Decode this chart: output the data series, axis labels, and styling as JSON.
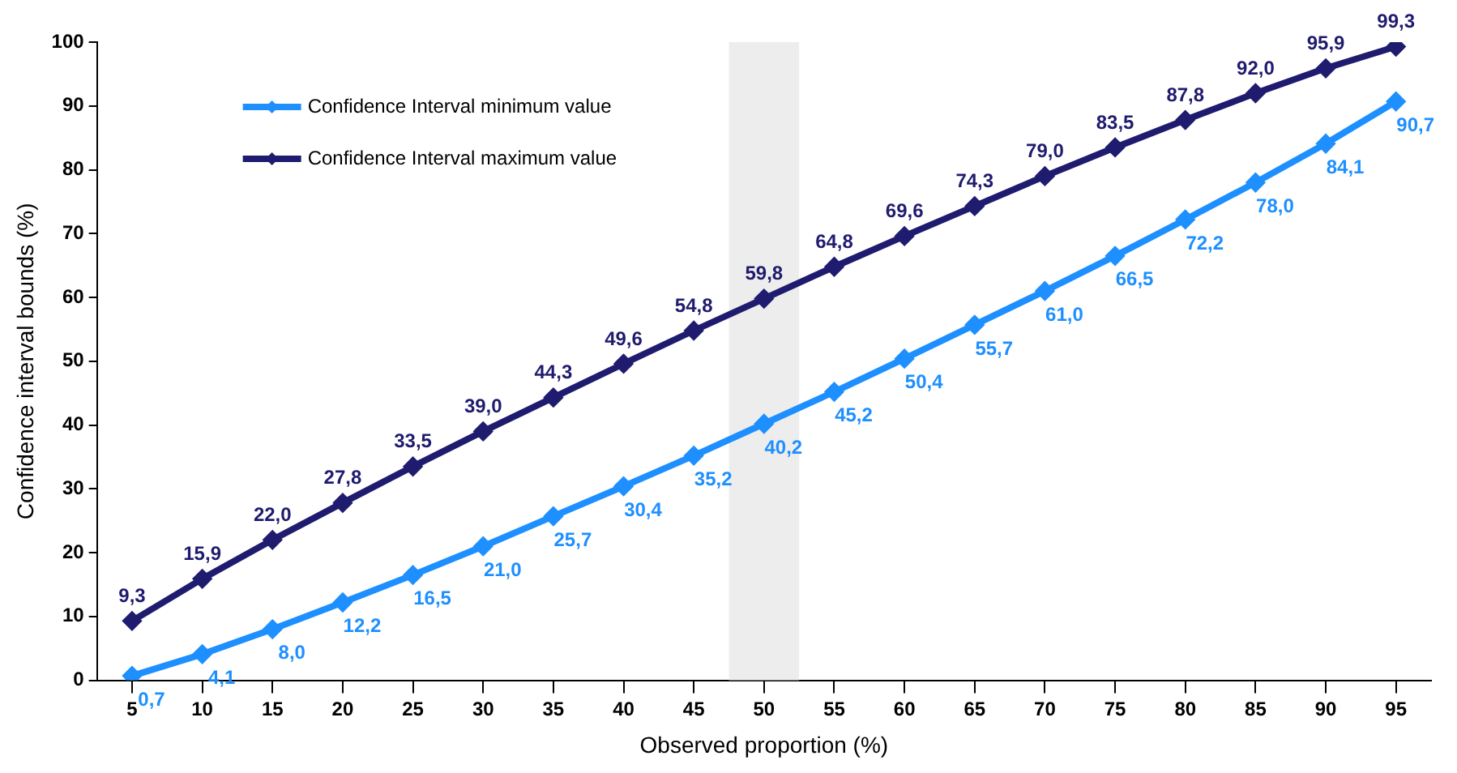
{
  "chart_data": {
    "type": "line",
    "xlabel": "Observed proportion (%)",
    "ylabel": "Confidence interval bounds (%)",
    "x": [
      5,
      10,
      15,
      20,
      25,
      30,
      35,
      40,
      45,
      50,
      55,
      60,
      65,
      70,
      75,
      80,
      85,
      90,
      95
    ],
    "xlim": [
      2.5,
      97.5
    ],
    "xticks": [
      5,
      10,
      15,
      20,
      25,
      30,
      35,
      40,
      45,
      50,
      55,
      60,
      65,
      70,
      75,
      80,
      85,
      90,
      95
    ],
    "ylim": [
      0,
      100
    ],
    "yticks": [
      0,
      10,
      20,
      30,
      40,
      50,
      60,
      70,
      80,
      90,
      100
    ],
    "series": [
      {
        "name": "Confidence Interval minimum value",
        "color": "#1e8fff",
        "values": [
          0.7,
          4.1,
          8.0,
          12.2,
          16.5,
          21.0,
          25.7,
          30.4,
          35.2,
          40.2,
          45.2,
          50.4,
          55.7,
          61.0,
          66.5,
          72.2,
          78.0,
          84.1,
          90.7
        ],
        "value_labels": [
          "0,7",
          "4,1",
          "8,0",
          "12,2",
          "16,5",
          "21,0",
          "25,7",
          "30,4",
          "35,2",
          "40,2",
          "45,2",
          "50,4",
          "55,7",
          "61,0",
          "66,5",
          "72,2",
          "78,0",
          "84,1",
          "90,7"
        ]
      },
      {
        "name": "Confidence Interval maximum value",
        "color": "#1f1b6e",
        "values": [
          9.3,
          15.9,
          22.0,
          27.8,
          33.5,
          39.0,
          44.3,
          49.6,
          54.8,
          59.8,
          64.8,
          69.6,
          74.3,
          79.0,
          83.5,
          87.8,
          92.0,
          95.9,
          99.3
        ],
        "value_labels": [
          "9,3",
          "15,9",
          "22,0",
          "27,8",
          "33,5",
          "39,0",
          "44,3",
          "49,6",
          "54,8",
          "59,8",
          "64,8",
          "69,6",
          "74,3",
          "79,0",
          "83,5",
          "87,8",
          "92,0",
          "95,9",
          "99,3"
        ]
      }
    ],
    "bands": [
      {
        "axis": "x",
        "from": 47.5,
        "to": 52.5,
        "color": "#ededed"
      }
    ],
    "marker": "diamond",
    "line_style": "solid",
    "grid": false,
    "legend": "top left"
  }
}
